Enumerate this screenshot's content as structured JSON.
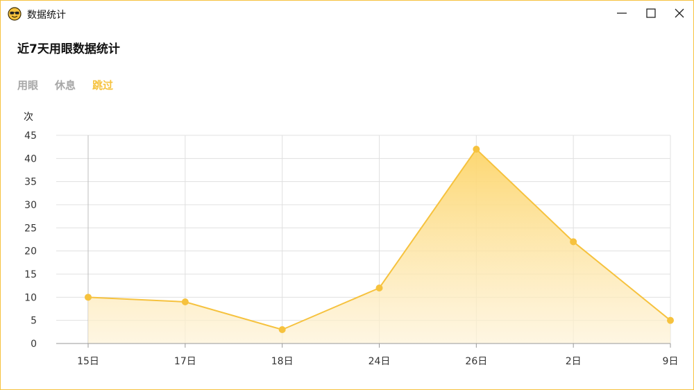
{
  "window": {
    "title": "数据统计",
    "app_icon": "sunglasses-face-icon",
    "controls": [
      "minimize-icon",
      "maximize-icon",
      "close-icon"
    ]
  },
  "heading": "近7天用眼数据统计",
  "tabs": [
    {
      "label": "用眼",
      "active": false
    },
    {
      "label": "休息",
      "active": false
    },
    {
      "label": "跳过",
      "active": true
    }
  ],
  "colors": {
    "accent": "#f6c23e",
    "inactive_tab": "#a7a7a7",
    "grid": "#e0e0e0"
  },
  "chart_data": {
    "type": "area",
    "title": "",
    "xlabel": "",
    "ylabel": "次",
    "categories": [
      "15日",
      "17日",
      "18日",
      "24日",
      "26日",
      "2日",
      "9日"
    ],
    "values": [
      10,
      9,
      3,
      12,
      42,
      22,
      5
    ],
    "ylim": [
      0,
      45
    ],
    "yticks": [
      0,
      5,
      10,
      15,
      20,
      25,
      30,
      35,
      40,
      45
    ],
    "grid": true,
    "legend": "none"
  }
}
